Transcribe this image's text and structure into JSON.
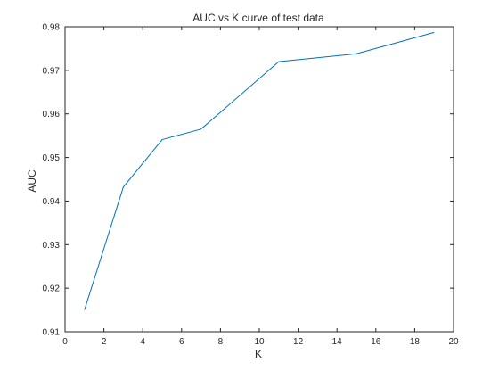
{
  "chart_data": {
    "type": "line",
    "title": "AUC vs K curve of test data",
    "xlabel": "K",
    "ylabel": "AUC",
    "xlim": [
      0,
      20
    ],
    "ylim": [
      0.91,
      0.98
    ],
    "xticks": [
      0,
      2,
      4,
      6,
      8,
      10,
      12,
      14,
      16,
      18,
      20
    ],
    "yticks": [
      0.91,
      0.92,
      0.93,
      0.94,
      0.95,
      0.96,
      0.97,
      0.98
    ],
    "ytick_labels": [
      "0.91",
      "0.92",
      "0.93",
      "0.94",
      "0.95",
      "0.96",
      "0.97",
      "0.98"
    ],
    "grid": false,
    "series": [
      {
        "x": [
          1,
          3,
          5,
          7,
          11,
          15,
          19
        ],
        "y": [
          0.915,
          0.9432,
          0.9541,
          0.9565,
          0.972,
          0.9738,
          0.9787
        ],
        "color": "#0072BD"
      }
    ]
  }
}
